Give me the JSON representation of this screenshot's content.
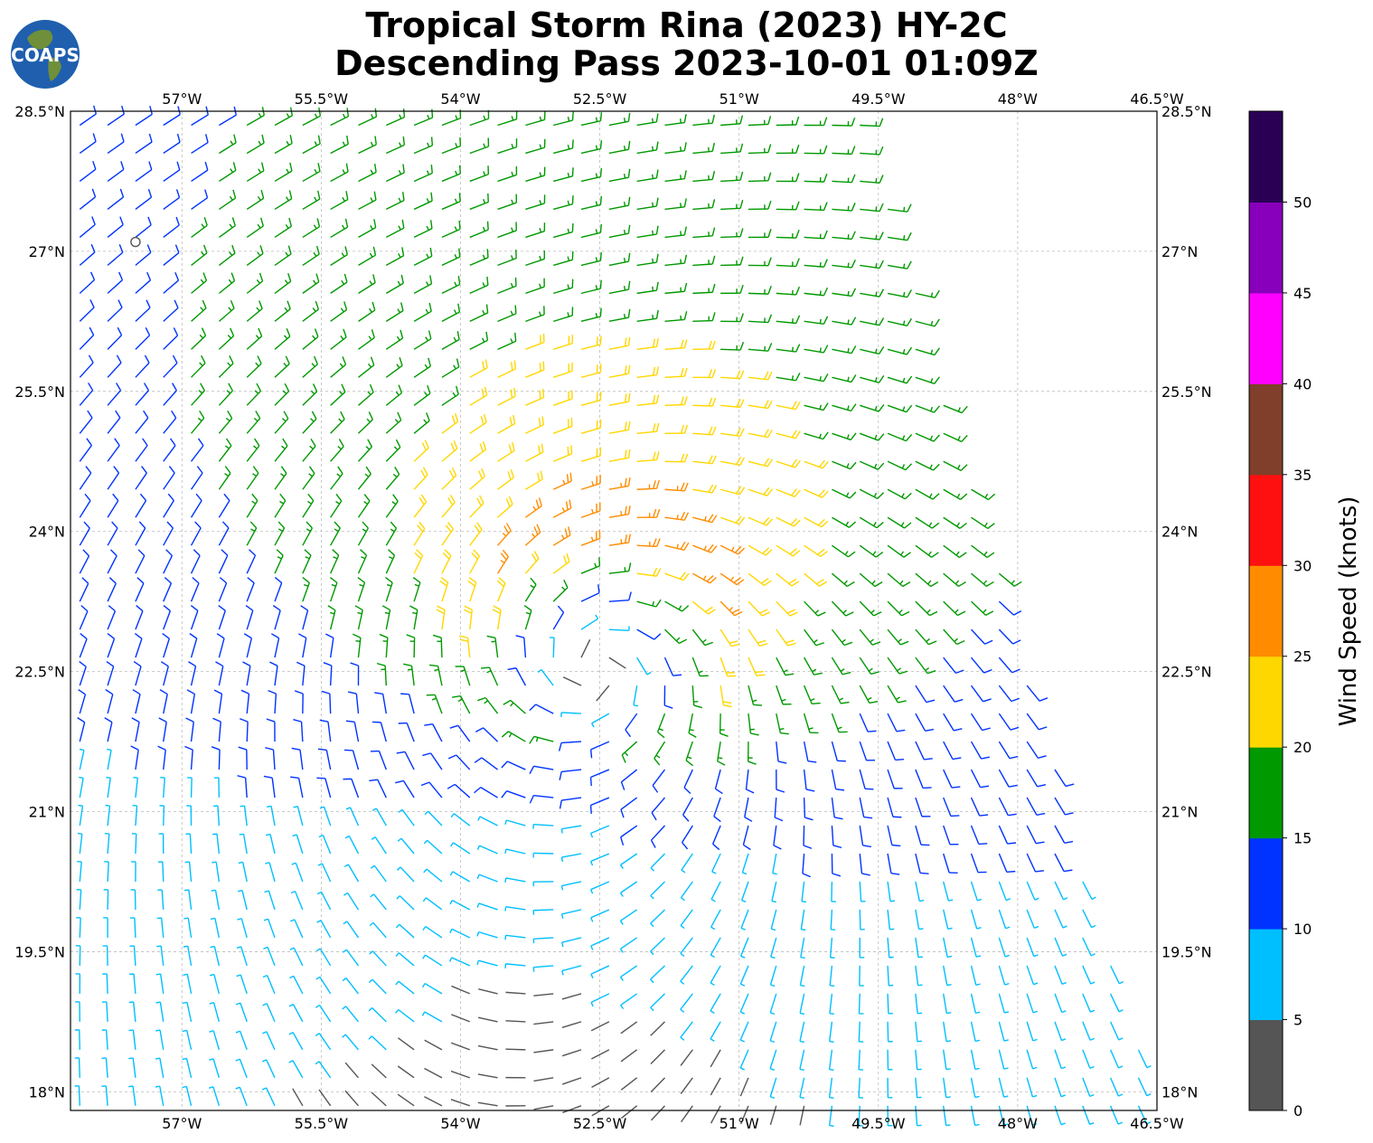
{
  "title_line1": "Tropical Storm Rina (2023) HY-2C",
  "title_line2": "Descending Pass 2023-10-01 01:09Z",
  "logo_text": "COAPS",
  "map": {
    "lon_range": [
      -58.2,
      -46.5
    ],
    "lat_range": [
      17.8,
      28.5
    ],
    "lon_ticks": [
      "57°W",
      "55.5°W",
      "54°W",
      "52.5°W",
      "51°W",
      "49.5°W",
      "48°W",
      "46.5°W"
    ],
    "lon_tick_values": [
      -57,
      -55.5,
      -54,
      -52.5,
      -51,
      -49.5,
      -48,
      -46.5
    ],
    "lat_ticks": [
      "28.5°N",
      "27°N",
      "25.5°N",
      "24°N",
      "22.5°N",
      "21°N",
      "19.5°N",
      "18°N"
    ],
    "lat_tick_values": [
      28.5,
      27,
      25.5,
      24,
      22.5,
      21,
      19.5,
      18
    ],
    "gridlines": true,
    "storm_center": {
      "lon": -52.5,
      "lat": 22.9
    },
    "swath_edge_note": "no data east of swath",
    "calm_marker": {
      "lon": -57.5,
      "lat": 27.1
    }
  },
  "colorbar": {
    "title": "Wind Speed (knots)",
    "ticks": [
      "0",
      "5",
      "10",
      "15",
      "20",
      "25",
      "30",
      "35",
      "40",
      "45",
      "50"
    ],
    "bins": [
      {
        "min": 0,
        "max": 5,
        "color": "#555555"
      },
      {
        "min": 5,
        "max": 10,
        "color": "#00bfff"
      },
      {
        "min": 10,
        "max": 15,
        "color": "#0033ff"
      },
      {
        "min": 15,
        "max": 20,
        "color": "#009900"
      },
      {
        "min": 20,
        "max": 25,
        "color": "#ffd700"
      },
      {
        "min": 25,
        "max": 30,
        "color": "#ff8c00"
      },
      {
        "min": 30,
        "max": 35,
        "color": "#ff1010"
      },
      {
        "min": 35,
        "max": 40,
        "color": "#7f3f2a"
      },
      {
        "min": 40,
        "max": 45,
        "color": "#ff00ff"
      },
      {
        "min": 45,
        "max": 50,
        "color": "#8800bb"
      },
      {
        "min": 50,
        "max": 55,
        "color": "#2a0055"
      }
    ]
  }
}
